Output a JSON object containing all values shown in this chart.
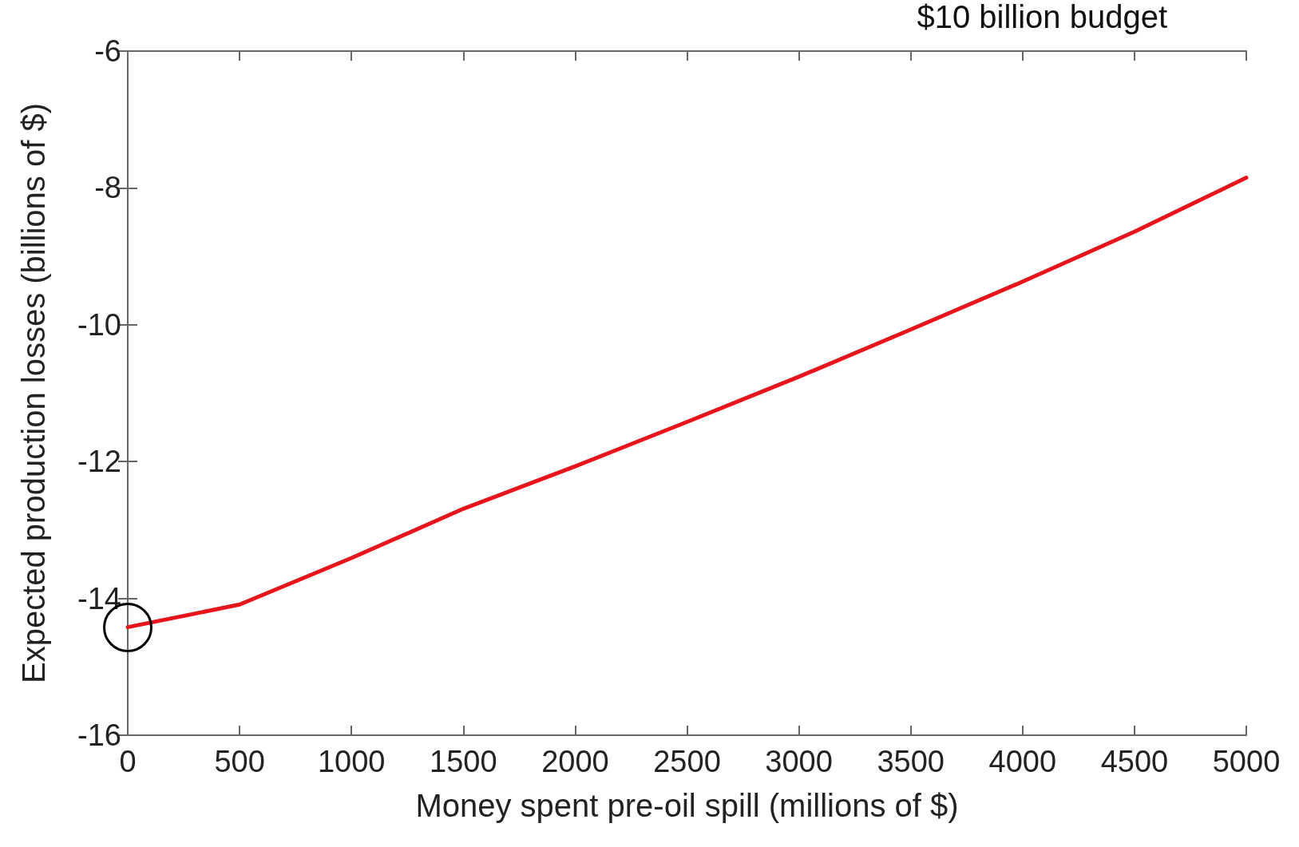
{
  "chart_data": {
    "type": "line",
    "title": "$10 billion budget",
    "xlabel": "Money spent pre-oil spill (millions of $)",
    "ylabel": "Expected production losses (billions of $)",
    "x": [
      0,
      500,
      1000,
      1500,
      2000,
      2500,
      3000,
      3500,
      4000,
      4500,
      5000
    ],
    "series": [
      {
        "color": "#e8141b",
        "values": [
          -14.42,
          -14.09,
          -13.41,
          -12.69,
          -12.07,
          -11.42,
          -10.76,
          -10.07,
          -9.37,
          -8.64,
          -7.85
        ]
      }
    ],
    "xlim": [
      0,
      5000
    ],
    "xticks": [
      0,
      500,
      1000,
      1500,
      2000,
      2500,
      3000,
      3500,
      4000,
      4500,
      5000
    ],
    "ylim": [
      -16,
      -6
    ],
    "yticks": [
      -16,
      -14,
      -12,
      -10,
      -8,
      -6
    ],
    "grid": false,
    "marker": "none",
    "line_style": "solid"
  }
}
